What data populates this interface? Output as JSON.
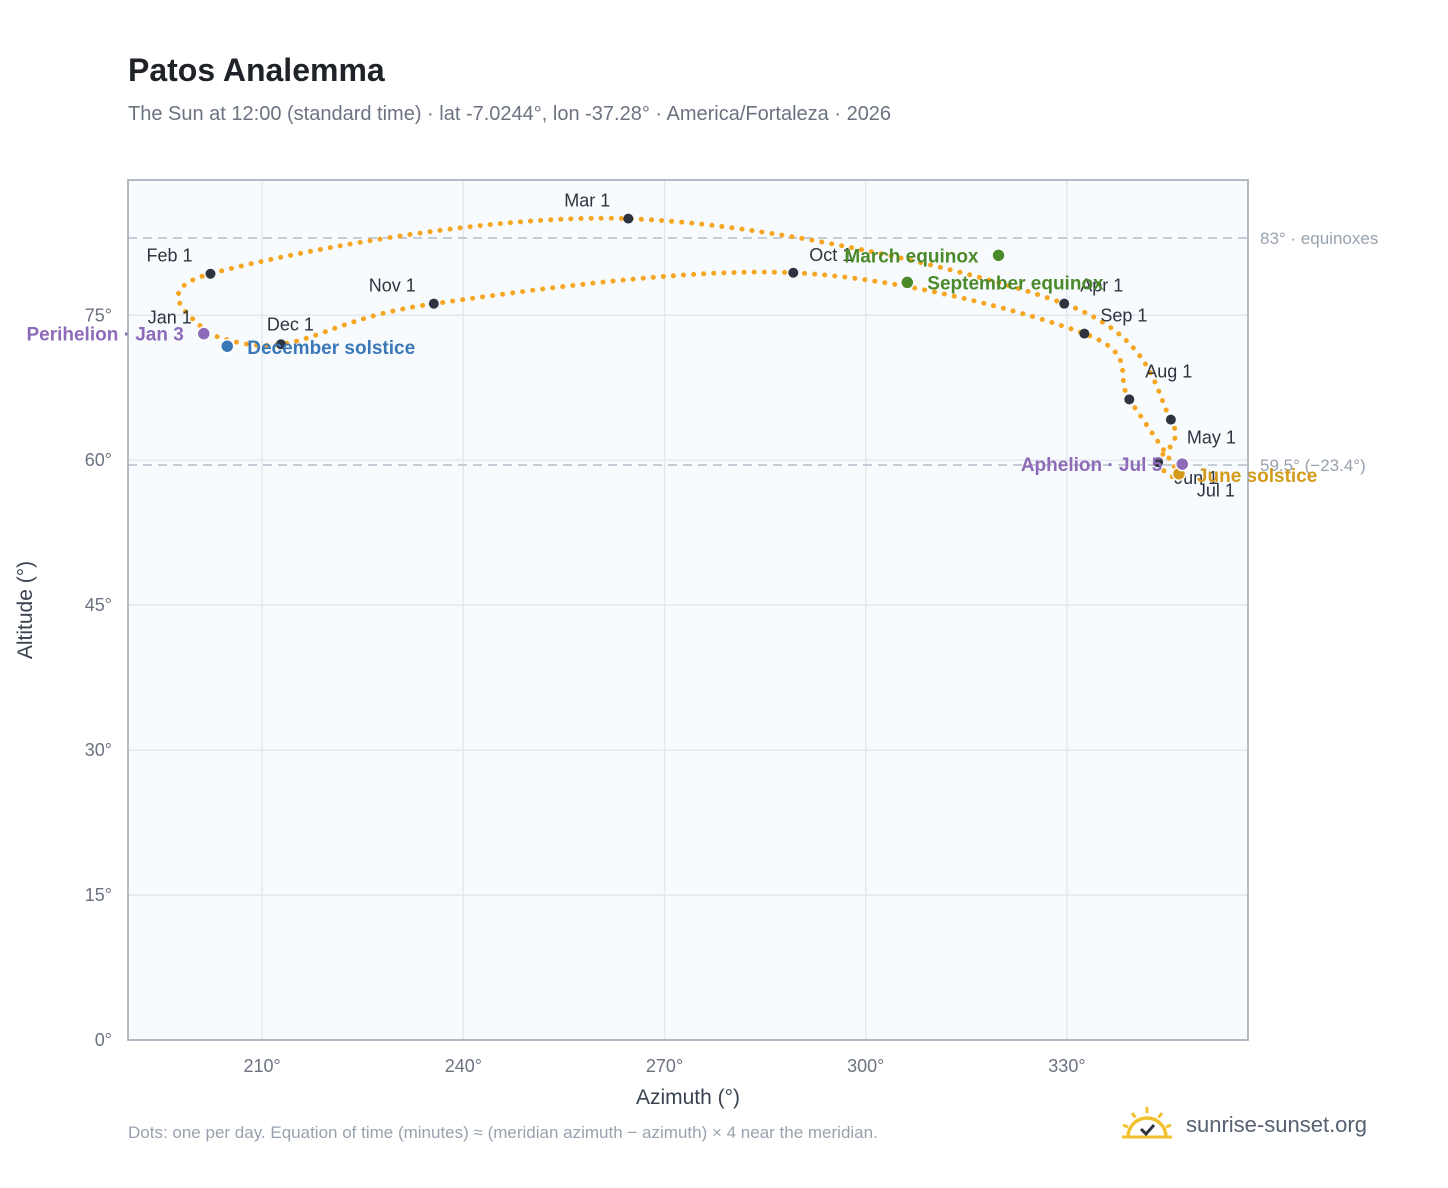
{
  "header": {
    "title": "Patos Analemma",
    "subtitle": "The Sun at 12:00 (standard time) · lat -7.0244°, lon -37.28° · America/Fortaleza · 2026"
  },
  "footer": {
    "note": "Dots: one per day. Equation of time (minutes) ≈ (meridian azimuth − azimuth) × 4 near the meridian.",
    "brand": "sunrise-sunset.org",
    "brand_icon": "sun-logo-icon"
  },
  "colors": {
    "curve": "#f5a623",
    "month_marker": "#2d3440",
    "equinox": "#4a8a2a",
    "december_solstice": "#3a78b8",
    "june_solstice": "#d49a1a",
    "apsis": "#8d6bb8",
    "plot_bg": "#f8fbfd",
    "grid": "#e2e8ee",
    "reference_line": "#c5ccd5"
  },
  "chart_data": {
    "type": "scatter",
    "xlabel": "Azimuth (°)",
    "ylabel": "Altitude (°)",
    "xlim": [
      190,
      357
    ],
    "ylim": [
      0,
      89
    ],
    "x_ticks": [
      210,
      240,
      270,
      300,
      330
    ],
    "x_tick_labels": [
      "210°",
      "240°",
      "270°",
      "300°",
      "330°"
    ],
    "y_ticks": [
      0,
      15,
      30,
      45,
      60,
      75
    ],
    "y_tick_labels": [
      "0°",
      "15°",
      "30°",
      "45°",
      "60°",
      "75°"
    ],
    "grid": true,
    "reference_lines": [
      {
        "altitude": 83.0,
        "label": "83° · equinoxes"
      },
      {
        "altitude": 59.5,
        "label": "59.5° (−23.4°)"
      }
    ],
    "month_markers": [
      {
        "label": "Jan 1",
        "azimuth": 201.6,
        "altitude": 73.1
      },
      {
        "label": "Feb 1",
        "azimuth": 202.3,
        "altitude": 79.3
      },
      {
        "label": "Mar 1",
        "azimuth": 264.6,
        "altitude": 85.0
      },
      {
        "label": "Apr 1",
        "azimuth": 329.6,
        "altitude": 76.2
      },
      {
        "label": "May 1",
        "azimuth": 345.5,
        "altitude": 64.2
      },
      {
        "label": "Jun 1",
        "azimuth": 343.6,
        "altitude": 59.8
      },
      {
        "label": "Jul 1",
        "azimuth": 346.7,
        "altitude": 58.5
      },
      {
        "label": "Aug 1",
        "azimuth": 339.3,
        "altitude": 66.3
      },
      {
        "label": "Sep 1",
        "azimuth": 332.6,
        "altitude": 73.1
      },
      {
        "label": "Oct 1",
        "azimuth": 289.2,
        "altitude": 79.4
      },
      {
        "label": "Nov 1",
        "azimuth": 235.6,
        "altitude": 76.2
      },
      {
        "label": "Dec 1",
        "azimuth": 212.8,
        "altitude": 72.0
      }
    ],
    "events": [
      {
        "label": "March equinox",
        "azimuth": 319.8,
        "altitude": 81.2,
        "color_key": "equinox"
      },
      {
        "label": "September equinox",
        "azimuth": 306.2,
        "altitude": 78.4,
        "color_key": "equinox"
      },
      {
        "label": "December solstice",
        "azimuth": 204.8,
        "altitude": 71.8,
        "color_key": "december_solstice"
      },
      {
        "label": "June solstice",
        "azimuth": 346.7,
        "altitude": 58.6,
        "color_key": "june_solstice"
      },
      {
        "label": "Perihelion · Jan 3",
        "azimuth": 201.3,
        "altitude": 73.1,
        "color_key": "apsis"
      },
      {
        "label": "Aphelion · Jul 5",
        "azimuth": 347.2,
        "altitude": 59.6,
        "color_key": "apsis"
      }
    ]
  }
}
